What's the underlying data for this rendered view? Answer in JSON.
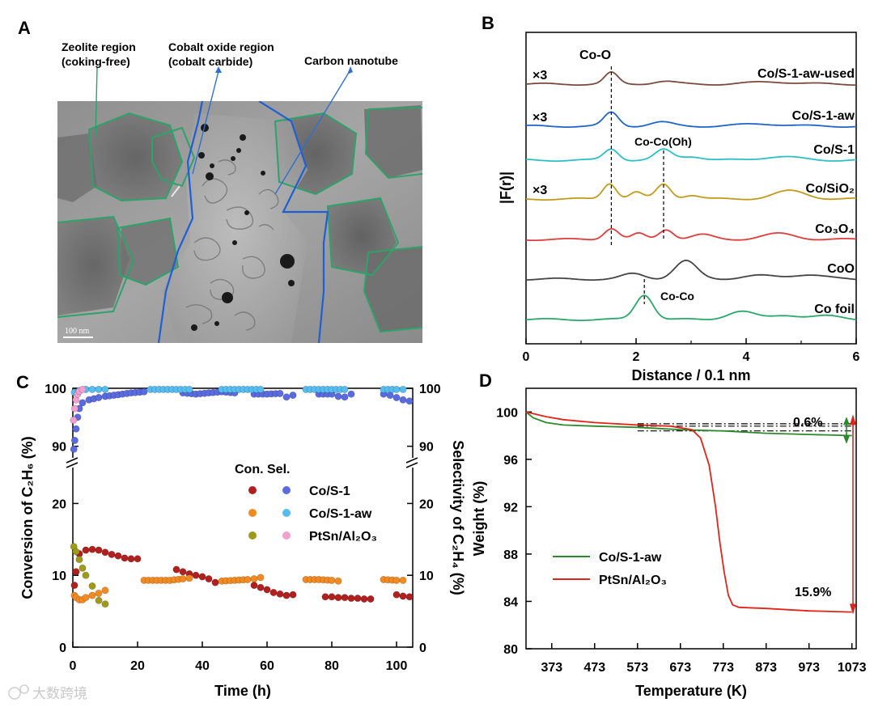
{
  "panel_labels": [
    "A",
    "B",
    "C",
    "D"
  ],
  "watermark": "大数跨境",
  "tem_image": {
    "scale_bar": "100 nm",
    "annotations": [
      {
        "line1": "Zeolite region",
        "line2": "(coking-free)"
      },
      {
        "line1": "Cobalt oxide region",
        "line2": "(cobalt carbide)"
      },
      {
        "line1": "Carbon nanotube",
        "line2": ""
      }
    ],
    "colors": {
      "zeolite": "#2ca36b",
      "cobalt": "#1f5fd6",
      "arrow": "#2f6fd0"
    }
  },
  "chart_data": [
    {
      "panel": "B",
      "type": "line",
      "xlabel": "Distance / 0.1 nm",
      "ylabel": "|F(r)|",
      "xlim": [
        0,
        6
      ],
      "xticks": [
        0,
        2,
        4,
        6
      ],
      "series": [
        {
          "name": "Co/S-1-aw-used",
          "multiplier": "×3",
          "color": "#7a4a3c",
          "peaks": [
            [
              1.55,
              1.0,
              0.12
            ],
            [
              2.5,
              0.25,
              0.2
            ],
            [
              4.5,
              0.2,
              0.4
            ]
          ]
        },
        {
          "name": "Co/S-1-aw",
          "multiplier": "×3",
          "color": "#1f64c8",
          "peaks": [
            [
              1.55,
              1.2,
              0.13
            ],
            [
              2.45,
              0.35,
              0.2
            ],
            [
              4.3,
              0.2,
              0.4
            ]
          ]
        },
        {
          "name": "Co/S-1",
          "multiplier": "",
          "color": "#2cc0c6",
          "peaks": [
            [
              1.55,
              1.0,
              0.13
            ],
            [
              2.5,
              0.9,
              0.15
            ],
            [
              3.0,
              0.35,
              0.2
            ],
            [
              4.6,
              0.3,
              0.35
            ]
          ]
        },
        {
          "name": "Co/SiO₂",
          "multiplier": "×3",
          "color": "#c39a1a",
          "peaks": [
            [
              1.52,
              1.4,
              0.12
            ],
            [
              2.0,
              0.6,
              0.12
            ],
            [
              2.5,
              1.3,
              0.13
            ],
            [
              3.0,
              0.35,
              0.15
            ],
            [
              4.8,
              0.7,
              0.3
            ]
          ]
        },
        {
          "name": "Co₃O₄",
          "multiplier": "",
          "color": "#e03c3c",
          "peaks": [
            [
              1.55,
              1.0,
              0.13
            ],
            [
              2.05,
              0.5,
              0.12
            ],
            [
              2.55,
              0.9,
              0.13
            ],
            [
              3.2,
              0.4,
              0.2
            ],
            [
              4.6,
              0.5,
              0.3
            ]
          ]
        },
        {
          "name": "CoO",
          "multiplier": "",
          "color": "#444444",
          "peaks": [
            [
              1.95,
              0.45,
              0.2
            ],
            [
              2.9,
              1.6,
              0.2
            ],
            [
              4.2,
              0.3,
              0.3
            ],
            [
              5.1,
              0.4,
              0.3
            ]
          ]
        },
        {
          "name": "Co foil",
          "multiplier": "",
          "color": "#2aa86a",
          "peaks": [
            [
              2.15,
              2.2,
              0.16
            ],
            [
              3.9,
              0.7,
              0.25
            ],
            [
              4.7,
              0.4,
              0.25
            ],
            [
              5.5,
              0.3,
              0.3
            ]
          ]
        }
      ],
      "annotations": [
        "Co-O",
        "Co-Co(Oh)",
        "Co-Co"
      ],
      "dashed_lines_x": [
        1.55,
        2.5,
        2.15
      ]
    },
    {
      "panel": "C",
      "type": "scatter",
      "xlabel": "Time (h)",
      "ylabel_left": "Conversion of C₂H₆ (%)",
      "ylabel_right": "Selectivity of C₂H₄ (%)",
      "xlim": [
        0,
        105
      ],
      "xticks": [
        0,
        20,
        40,
        60,
        80,
        100
      ],
      "ylim_lower": [
        0,
        25
      ],
      "ylim_upper": [
        88,
        100
      ],
      "yticks_lower": [
        0,
        10,
        20
      ],
      "yticks_upper": [
        90,
        100
      ],
      "legend_header": "Con. Sel.",
      "legend": [
        "Co/S-1",
        "Co/S-1-aw",
        "PtSn/Al₂O₃"
      ],
      "series": [
        {
          "name": "Co/S-1 Con.",
          "color": "#b0201e",
          "points": [
            [
              0.5,
              8.6
            ],
            [
              1,
              10.5
            ],
            [
              2,
              13.0
            ],
            [
              4,
              13.5
            ],
            [
              6,
              13.6
            ],
            [
              8,
              13.5
            ],
            [
              10,
              13.2
            ],
            [
              12,
              12.9
            ],
            [
              14,
              12.7
            ],
            [
              16,
              12.4
            ],
            [
              18,
              12.3
            ],
            [
              20,
              12.3
            ],
            [
              32,
              10.8
            ],
            [
              34,
              10.5
            ],
            [
              36,
              10.2
            ],
            [
              38,
              10.0
            ],
            [
              40,
              9.8
            ],
            [
              42,
              9.5
            ],
            [
              44,
              9.0
            ],
            [
              56,
              8.6
            ],
            [
              58,
              8.3
            ],
            [
              60,
              8.0
            ],
            [
              62,
              7.6
            ],
            [
              64,
              7.4
            ],
            [
              66,
              7.2
            ],
            [
              68,
              7.3
            ],
            [
              78,
              7.0
            ],
            [
              80,
              7.0
            ],
            [
              82,
              6.9
            ],
            [
              84,
              6.9
            ],
            [
              86,
              6.8
            ],
            [
              88,
              6.8
            ],
            [
              90,
              6.7
            ],
            [
              92,
              6.7
            ],
            [
              100,
              7.3
            ],
            [
              102,
              7.1
            ],
            [
              104,
              7.0
            ]
          ]
        },
        {
          "name": "Co/S-1 Sel.",
          "color": "#5a6be0",
          "points": [
            [
              0.3,
              89.5
            ],
            [
              0.6,
              91
            ],
            [
              1,
              93
            ],
            [
              1.5,
              95
            ],
            [
              2,
              96.5
            ],
            [
              3,
              97.5
            ],
            [
              5,
              98
            ],
            [
              8,
              98.4
            ],
            [
              10,
              98.6
            ],
            [
              14,
              98.9
            ],
            [
              18,
              99.2
            ],
            [
              22,
              99.4
            ],
            [
              34,
              99.2
            ],
            [
              38,
              99.0
            ],
            [
              42,
              99.2
            ],
            [
              46,
              99.4
            ],
            [
              50,
              99.2
            ],
            [
              56,
              99.0
            ],
            [
              60,
              99.0
            ],
            [
              64,
              99.1
            ],
            [
              66,
              98.5
            ],
            [
              68,
              98.8
            ],
            [
              76,
              99.0
            ],
            [
              80,
              99.0
            ],
            [
              82,
              98.6
            ],
            [
              84,
              98.5
            ],
            [
              86,
              99.0
            ],
            [
              96,
              99.0
            ],
            [
              98,
              98.8
            ],
            [
              100,
              98.4
            ],
            [
              102,
              98.0
            ],
            [
              104,
              97.8
            ]
          ]
        },
        {
          "name": "Co/S-1-aw Con.",
          "color": "#f28a22",
          "points": [
            [
              0.5,
              7.2
            ],
            [
              1,
              6.9
            ],
            [
              2,
              6.6
            ],
            [
              3,
              6.6
            ],
            [
              4,
              6.9
            ],
            [
              6,
              7.2
            ],
            [
              8,
              7.5
            ],
            [
              10,
              7.9
            ],
            [
              22,
              9.3
            ],
            [
              26,
              9.3
            ],
            [
              30,
              9.3
            ],
            [
              34,
              9.5
            ],
            [
              36,
              9.6
            ],
            [
              46,
              9.2
            ],
            [
              50,
              9.3
            ],
            [
              54,
              9.4
            ],
            [
              56,
              9.5
            ],
            [
              58,
              9.7
            ],
            [
              72,
              9.4
            ],
            [
              76,
              9.4
            ],
            [
              80,
              9.3
            ],
            [
              82,
              9.2
            ],
            [
              96,
              9.4
            ],
            [
              100,
              9.3
            ],
            [
              102,
              9.3
            ]
          ]
        },
        {
          "name": "Co/S-1-aw Sel.",
          "color": "#57bdf0",
          "points": [
            [
              0.5,
              99.3
            ],
            [
              2,
              99.6
            ],
            [
              4,
              99.8
            ],
            [
              6,
              99.8
            ],
            [
              8,
              99.8
            ],
            [
              10,
              99.8
            ],
            [
              24,
              99.8
            ],
            [
              28,
              99.8
            ],
            [
              32,
              99.8
            ],
            [
              36,
              99.8
            ],
            [
              46,
              99.8
            ],
            [
              50,
              99.8
            ],
            [
              54,
              99.8
            ],
            [
              58,
              99.8
            ],
            [
              72,
              99.8
            ],
            [
              76,
              99.8
            ],
            [
              80,
              99.8
            ],
            [
              84,
              99.8
            ],
            [
              96,
              99.8
            ],
            [
              100,
              99.8
            ],
            [
              102,
              99.8
            ]
          ]
        },
        {
          "name": "PtSn/Al₂O₃ Con.",
          "color": "#9e9a1a",
          "points": [
            [
              0.3,
              14.0
            ],
            [
              1,
              13.3
            ],
            [
              2,
              12.2
            ],
            [
              3,
              11.0
            ],
            [
              4,
              10.0
            ],
            [
              6,
              8.5
            ],
            [
              8,
              6.5
            ],
            [
              10,
              6.0
            ]
          ]
        },
        {
          "name": "PtSn/Al₂O₃ Sel.",
          "color": "#f2a0cf",
          "points": [
            [
              0.2,
              94.5
            ],
            [
              0.6,
              96.5
            ],
            [
              1,
              98.0
            ],
            [
              1.5,
              99.0
            ],
            [
              2,
              99.5
            ],
            [
              3,
              99.8
            ]
          ]
        }
      ]
    },
    {
      "panel": "D",
      "type": "line",
      "xlabel": "Temperature (K)",
      "ylabel": "Weight (%)",
      "xlim": [
        313,
        1083
      ],
      "ylim": [
        80,
        102
      ],
      "xticks": [
        373,
        473,
        573,
        673,
        773,
        873,
        973,
        1073
      ],
      "yticks": [
        80,
        84,
        88,
        92,
        96,
        100
      ],
      "legend": [
        "Co/S-1-aw",
        "PtSn/Al₂O₃"
      ],
      "annotations": [
        "0.6%",
        "15.9%"
      ],
      "series": [
        {
          "name": "Co/S-1-aw",
          "color": "#2b8a2b",
          "points": [
            [
              313,
              100
            ],
            [
              330,
              99.5
            ],
            [
              360,
              99.1
            ],
            [
              400,
              98.9
            ],
            [
              473,
              98.8
            ],
            [
              573,
              98.7
            ],
            [
              673,
              98.5
            ],
            [
              773,
              98.4
            ],
            [
              873,
              98.2
            ],
            [
              973,
              98.1
            ],
            [
              1073,
              98.0
            ]
          ]
        },
        {
          "name": "PtSn/Al₂O₃",
          "color": "#e2231a",
          "points": [
            [
              313,
              100
            ],
            [
              360,
              99.6
            ],
            [
              400,
              99.35
            ],
            [
              473,
              99.1
            ],
            [
              573,
              98.9
            ],
            [
              650,
              98.8
            ],
            [
              700,
              98.5
            ],
            [
              720,
              97.8
            ],
            [
              740,
              95.5
            ],
            [
              755,
              92.0
            ],
            [
              765,
              89.0
            ],
            [
              775,
              86.5
            ],
            [
              785,
              84.5
            ],
            [
              795,
              83.7
            ],
            [
              810,
              83.5
            ],
            [
              873,
              83.4
            ],
            [
              973,
              83.2
            ],
            [
              1073,
              83.1
            ]
          ]
        }
      ]
    }
  ]
}
